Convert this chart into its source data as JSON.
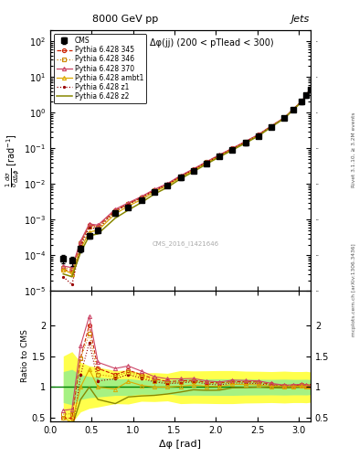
{
  "title_top": "8000 GeV pp",
  "title_right": "Jets",
  "annotation": "Δφ(jj) (200 < pTlead < 300)",
  "watermark": "CMS_2016_I1421646",
  "right_label1": "Rivet 3.1.10, ≥ 3.2M events",
  "right_label2": "mcplots.cern.ch [arXiv:1306.3436]",
  "xlabel": "Δφ [rad]",
  "ylabel_main": "$\\frac{1}{\\sigma}\\frac{d\\sigma}{d\\Delta\\phi}$ [rad$^{-1}$]",
  "ylabel_ratio": "Ratio to CMS",
  "cms_x": [
    0.157,
    0.262,
    0.366,
    0.471,
    0.576,
    0.785,
    0.942,
    1.099,
    1.257,
    1.414,
    1.571,
    1.728,
    1.885,
    2.042,
    2.199,
    2.356,
    2.513,
    2.67,
    2.827,
    2.932,
    3.037,
    3.089,
    3.141
  ],
  "cms_y": [
    8e-05,
    7e-05,
    0.00015,
    0.00035,
    0.0005,
    0.0015,
    0.0022,
    0.0035,
    0.006,
    0.009,
    0.015,
    0.023,
    0.038,
    0.06,
    0.09,
    0.14,
    0.22,
    0.4,
    0.7,
    1.2,
    2.0,
    3.0,
    4.5
  ],
  "cms_yerr": [
    2e-05,
    2e-05,
    3e-05,
    6e-05,
    8e-05,
    0.0002,
    0.0003,
    0.0004,
    0.0007,
    0.001,
    0.002,
    0.003,
    0.005,
    0.008,
    0.012,
    0.018,
    0.028,
    0.05,
    0.09,
    0.15,
    0.25,
    0.38,
    0.55
  ],
  "py345_x": [
    0.157,
    0.262,
    0.366,
    0.471,
    0.576,
    0.785,
    0.942,
    1.099,
    1.257,
    1.414,
    1.571,
    1.728,
    1.885,
    2.042,
    2.199,
    2.356,
    2.513,
    2.67,
    2.827,
    2.932,
    3.037,
    3.089,
    3.141
  ],
  "py345_y": [
    4e-05,
    3.5e-05,
    0.00022,
    0.0007,
    0.00065,
    0.0018,
    0.0028,
    0.0042,
    0.0068,
    0.0098,
    0.0165,
    0.0255,
    0.041,
    0.064,
    0.098,
    0.152,
    0.238,
    0.418,
    0.715,
    1.23,
    2.07,
    3.08,
    4.58
  ],
  "py346_x": [
    0.157,
    0.262,
    0.366,
    0.471,
    0.576,
    0.785,
    0.942,
    1.099,
    1.257,
    1.414,
    1.571,
    1.728,
    1.885,
    2.042,
    2.199,
    2.356,
    2.513,
    2.67,
    2.827,
    2.932,
    3.037,
    3.089,
    3.141
  ],
  "py346_y": [
    4.5e-05,
    4e-05,
    0.00022,
    0.00065,
    0.0006,
    0.00175,
    0.00275,
    0.0041,
    0.0066,
    0.0096,
    0.0162,
    0.0252,
    0.0405,
    0.0635,
    0.0975,
    0.15,
    0.236,
    0.416,
    0.712,
    1.225,
    2.06,
    3.06,
    4.56
  ],
  "py370_x": [
    0.157,
    0.262,
    0.366,
    0.471,
    0.576,
    0.785,
    0.942,
    1.099,
    1.257,
    1.414,
    1.571,
    1.728,
    1.885,
    2.042,
    2.199,
    2.356,
    2.513,
    2.67,
    2.827,
    2.932,
    3.037,
    3.089,
    3.141
  ],
  "py370_y": [
    5e-05,
    4.5e-05,
    0.00025,
    0.00075,
    0.0007,
    0.00195,
    0.00295,
    0.0044,
    0.007,
    0.0102,
    0.017,
    0.0262,
    0.0418,
    0.065,
    0.1,
    0.155,
    0.242,
    0.424,
    0.722,
    1.245,
    2.09,
    3.1,
    4.6
  ],
  "pyambt1_x": [
    0.157,
    0.262,
    0.366,
    0.471,
    0.576,
    0.785,
    0.942,
    1.099,
    1.257,
    1.414,
    1.571,
    1.728,
    1.885,
    2.042,
    2.199,
    2.356,
    2.513,
    2.67,
    2.827,
    2.932,
    3.037,
    3.089,
    3.141
  ],
  "pyambt1_y": [
    4e-05,
    3e-05,
    0.00015,
    0.00045,
    0.0005,
    0.00145,
    0.0024,
    0.0036,
    0.006,
    0.009,
    0.0152,
    0.0238,
    0.0385,
    0.0605,
    0.094,
    0.146,
    0.228,
    0.405,
    0.705,
    1.21,
    2.03,
    3.03,
    4.53
  ],
  "pyz1_x": [
    0.157,
    0.262,
    0.366,
    0.471,
    0.576,
    0.785,
    0.942,
    1.099,
    1.257,
    1.414,
    1.571,
    1.728,
    1.885,
    2.042,
    2.199,
    2.356,
    2.513,
    2.67,
    2.827,
    2.932,
    3.037,
    3.089,
    3.141
  ],
  "pyz1_y": [
    2.5e-05,
    1.5e-05,
    0.00018,
    0.0006,
    0.00055,
    0.0017,
    0.00265,
    0.004,
    0.0065,
    0.0095,
    0.016,
    0.025,
    0.04,
    0.062,
    0.096,
    0.149,
    0.232,
    0.412,
    0.71,
    1.22,
    2.05,
    3.05,
    4.55
  ],
  "pyz2_x": [
    0.157,
    0.262,
    0.366,
    0.471,
    0.576,
    0.785,
    0.942,
    1.099,
    1.257,
    1.414,
    1.571,
    1.728,
    1.885,
    2.042,
    2.199,
    2.356,
    2.513,
    2.67,
    2.827,
    2.932,
    3.037,
    3.089,
    3.141
  ],
  "pyz2_y": [
    3e-05,
    2.5e-05,
    0.00012,
    0.00035,
    0.0004,
    0.0011,
    0.00185,
    0.003,
    0.0052,
    0.008,
    0.0138,
    0.022,
    0.036,
    0.057,
    0.089,
    0.139,
    0.22,
    0.396,
    0.69,
    1.19,
    2.0,
    2.99,
    4.49
  ],
  "ylim_main": [
    1e-05,
    200.0
  ],
  "ylim_ratio": [
    0.45,
    2.55
  ],
  "xlim": [
    0.0,
    3.14159
  ],
  "color_cms": "#000000",
  "color_345": "#cc2200",
  "color_346": "#cc8800",
  "color_370": "#cc4466",
  "color_ambt1": "#ddaa00",
  "color_z1": "#990000",
  "color_z2": "#888800"
}
